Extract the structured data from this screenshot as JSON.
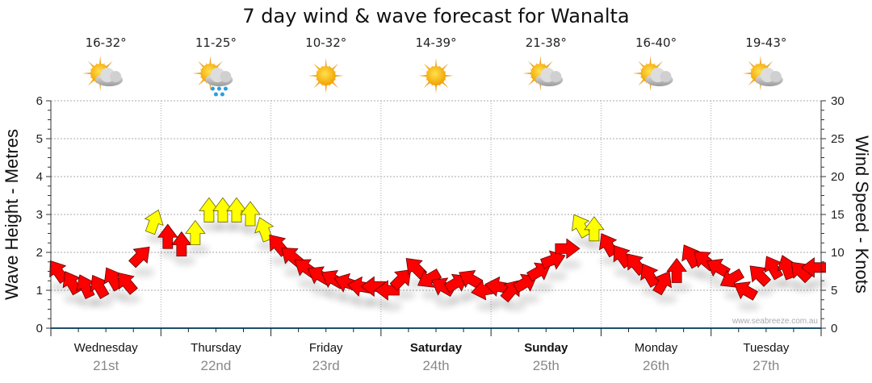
{
  "chart_data": {
    "type": "scatter",
    "title": "7 day wind & wave forecast for Wanalta",
    "ylabel_left": "Wave Height - Metres",
    "ylabel_right": "Wind Speed - Knots",
    "ylim_left": [
      0,
      6
    ],
    "ylim_right": [
      0,
      30
    ],
    "yticks_left": [
      "0",
      "1",
      "2",
      "3",
      "4",
      "5",
      "6"
    ],
    "yticks_right": [
      "0",
      "5",
      "10",
      "15",
      "20",
      "25",
      "30"
    ],
    "grid": true,
    "watermark": "www.seabreeze.com.au",
    "days": [
      {
        "name": "Wednesday",
        "date": "21st",
        "temp": "16-32°",
        "icon": "partly-cloudy-icon",
        "bold": false
      },
      {
        "name": "Thursday",
        "date": "22nd",
        "temp": "11-25°",
        "icon": "showers-icon",
        "bold": false
      },
      {
        "name": "Friday",
        "date": "23rd",
        "temp": "10-32°",
        "icon": "sunny-icon",
        "bold": false
      },
      {
        "name": "Saturday",
        "date": "24th",
        "temp": "14-39°",
        "icon": "sunny-icon",
        "bold": true
      },
      {
        "name": "Sunday",
        "date": "25th",
        "temp": "21-38°",
        "icon": "partly-cloudy-icon",
        "bold": true
      },
      {
        "name": "Monday",
        "date": "26th",
        "temp": "16-40°",
        "icon": "partly-cloudy-icon",
        "bold": false
      },
      {
        "name": "Tuesday",
        "date": "27th",
        "temp": "19-43°",
        "icon": "partly-cloudy-icon",
        "bold": false
      }
    ],
    "wind_interval_hours": 3,
    "wind_speed_knots": [
      7.5,
      6,
      5.5,
      5.5,
      6.5,
      6,
      9.5,
      14,
      12,
      11,
      12.5,
      15.5,
      15.5,
      15.5,
      15,
      13,
      11,
      9.5,
      8,
      7,
      6.5,
      6,
      5.5,
      5.5,
      5,
      6.5,
      8,
      6.5,
      5.5,
      6,
      6.5,
      5,
      5.5,
      5,
      6,
      7.5,
      9,
      10.5,
      13.5,
      13,
      11,
      9.5,
      8.5,
      7,
      6,
      7.5,
      9.5,
      9,
      8,
      6.5,
      5,
      7,
      8,
      8,
      7.5,
      8
    ],
    "wind_arrow_heading_deg": [
      -35,
      -30,
      -25,
      -30,
      -30,
      -40,
      45,
      20,
      0,
      0,
      0,
      0,
      0,
      0,
      0,
      -20,
      -40,
      -50,
      -55,
      -60,
      -60,
      -70,
      -80,
      -90,
      -90,
      45,
      -45,
      -120,
      -60,
      60,
      -60,
      -100,
      -80,
      40,
      60,
      60,
      70,
      90,
      -30,
      0,
      -30,
      -35,
      -40,
      -30,
      30,
      0,
      -30,
      -50,
      -60,
      -120,
      -60,
      -45,
      -30,
      -20,
      -45,
      -90
    ],
    "colors": {
      "calm": "#ff0000",
      "strong": "#ffff00",
      "axis": "#1a4f6e",
      "grid": "#aaaaaa"
    },
    "strong_threshold_knots": 12.5
  }
}
